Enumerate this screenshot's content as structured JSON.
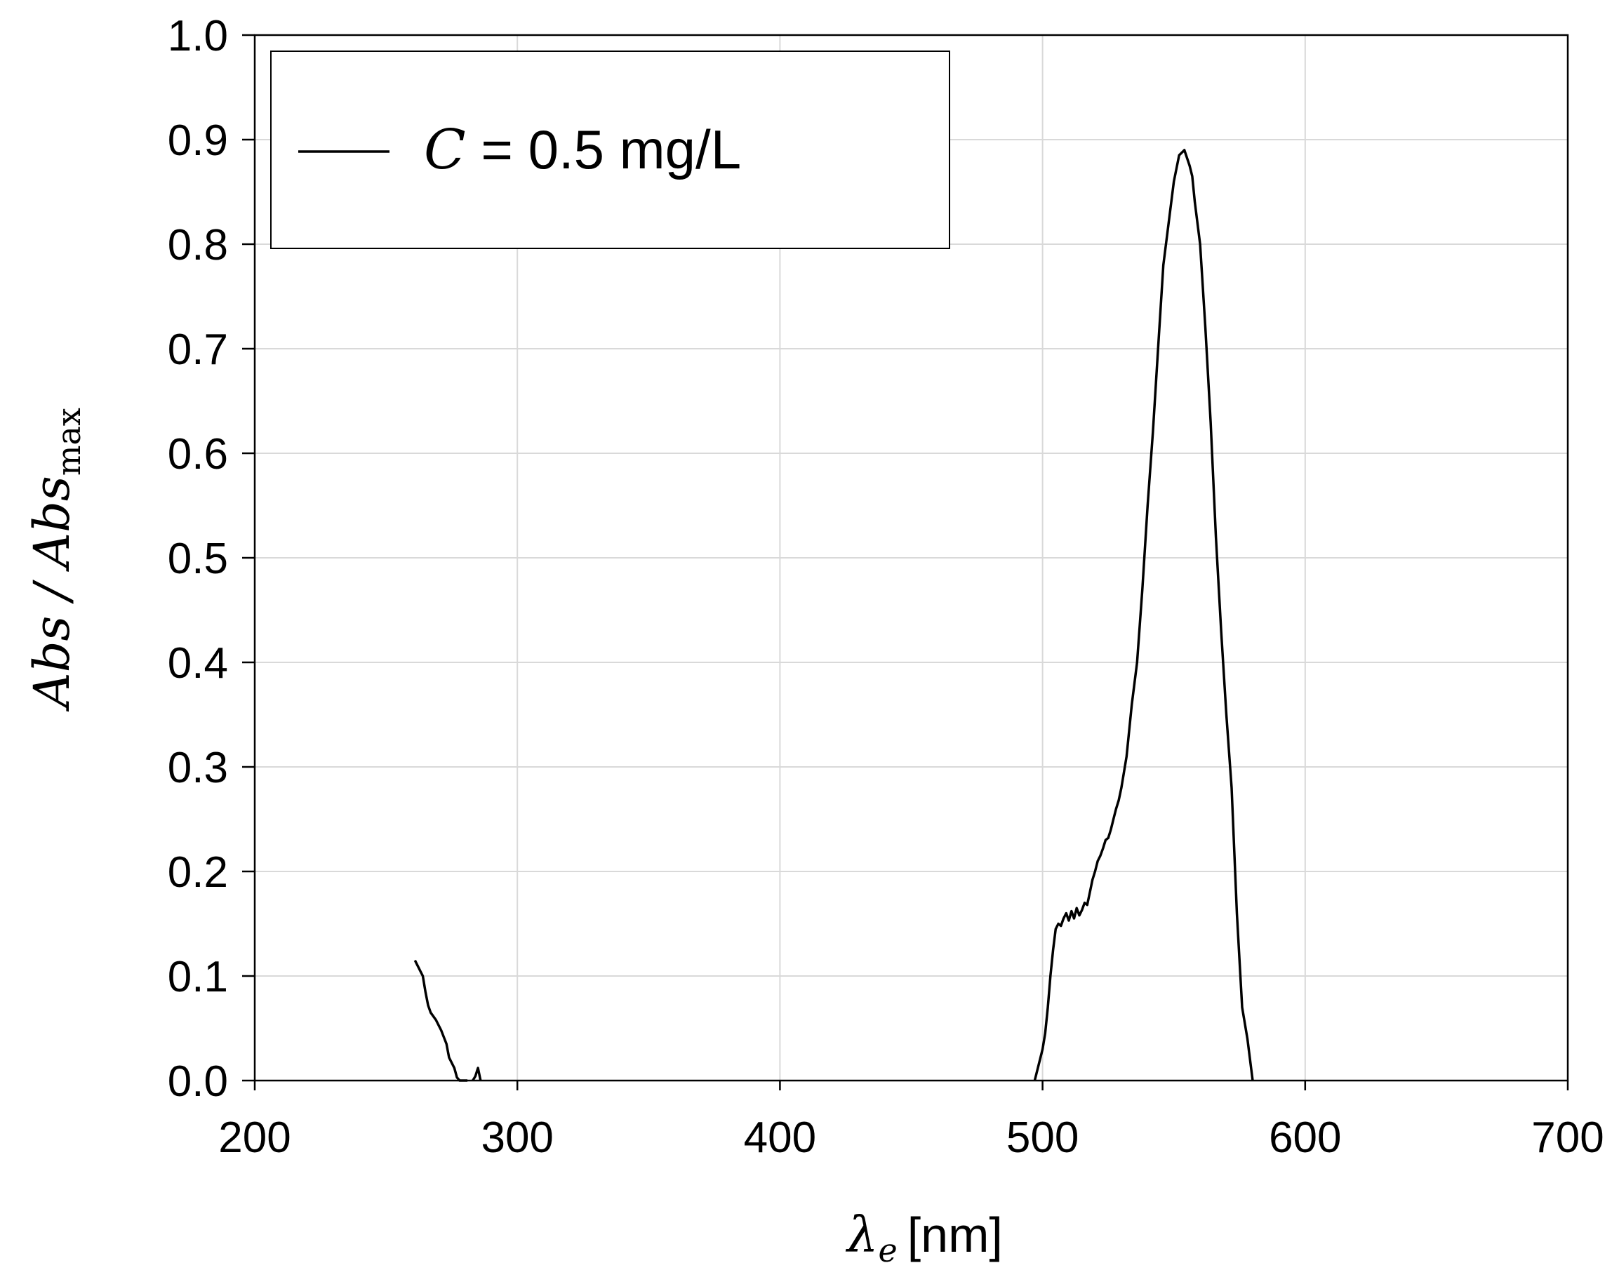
{
  "chart_data": {
    "type": "line",
    "title": "",
    "xlabel": {
      "symbol": "λ",
      "sub": "e",
      "unit": "[nm]"
    },
    "ylabel": {
      "num": "Abs",
      "sep": " / ",
      "den": "Abs",
      "sub": "max"
    },
    "xlim": [
      200,
      700
    ],
    "ylim": [
      0.0,
      1.0
    ],
    "xticks": [
      "200",
      "300",
      "400",
      "500",
      "600",
      "700"
    ],
    "yticks": [
      "0.0",
      "0.1",
      "0.2",
      "0.3",
      "0.4",
      "0.5",
      "0.6",
      "0.7",
      "0.8",
      "0.9",
      "1.0"
    ],
    "grid": true,
    "legend": {
      "position": "top-left",
      "entries": [
        {
          "symbol": "C",
          "text": " = 0.5 mg/L"
        }
      ]
    },
    "series": [
      {
        "name": "C = 0.5 mg/L",
        "color": "#000000",
        "segments": [
          [
            [
              261,
              0.115
            ],
            [
              263,
              0.105
            ],
            [
              264,
              0.1
            ],
            [
              265,
              0.085
            ],
            [
              266,
              0.072
            ],
            [
              267,
              0.065
            ],
            [
              269,
              0.058
            ],
            [
              271,
              0.048
            ],
            [
              273,
              0.035
            ],
            [
              274,
              0.022
            ],
            [
              276,
              0.012
            ],
            [
              277,
              0.003
            ],
            [
              278,
              0.0
            ],
            [
              280,
              0.0
            ],
            [
              281,
              0.0
            ]
          ],
          [
            [
              283,
              0.0
            ],
            [
              284,
              0.004
            ],
            [
              285,
              0.012
            ],
            [
              286,
              0.0
            ]
          ],
          [
            [
              497,
              0.0
            ],
            [
              499,
              0.02
            ],
            [
              500,
              0.03
            ],
            [
              501,
              0.045
            ],
            [
              502,
              0.07
            ],
            [
              503,
              0.1
            ],
            [
              504,
              0.125
            ],
            [
              505,
              0.145
            ],
            [
              506,
              0.15
            ],
            [
              507,
              0.148
            ],
            [
              508,
              0.155
            ],
            [
              509,
              0.16
            ],
            [
              510,
              0.153
            ],
            [
              511,
              0.162
            ],
            [
              512,
              0.155
            ],
            [
              513,
              0.165
            ],
            [
              514,
              0.158
            ],
            [
              515,
              0.163
            ],
            [
              516,
              0.17
            ],
            [
              517,
              0.168
            ],
            [
              518,
              0.18
            ],
            [
              519,
              0.192
            ],
            [
              520,
              0.2
            ],
            [
              521,
              0.21
            ],
            [
              522,
              0.215
            ],
            [
              523,
              0.222
            ],
            [
              524,
              0.23
            ],
            [
              525,
              0.232
            ],
            [
              526,
              0.24
            ],
            [
              527,
              0.25
            ],
            [
              528,
              0.26
            ],
            [
              529,
              0.268
            ],
            [
              530,
              0.28
            ],
            [
              532,
              0.31
            ],
            [
              534,
              0.36
            ],
            [
              536,
              0.4
            ],
            [
              538,
              0.47
            ],
            [
              540,
              0.55
            ],
            [
              542,
              0.62
            ],
            [
              544,
              0.7
            ],
            [
              546,
              0.78
            ],
            [
              548,
              0.82
            ],
            [
              550,
              0.86
            ],
            [
              552,
              0.885
            ],
            [
              554,
              0.89
            ],
            [
              556,
              0.875
            ],
            [
              557,
              0.865
            ],
            [
              558,
              0.84
            ],
            [
              560,
              0.8
            ],
            [
              562,
              0.72
            ],
            [
              564,
              0.63
            ],
            [
              566,
              0.52
            ],
            [
              568,
              0.43
            ],
            [
              570,
              0.35
            ],
            [
              572,
              0.28
            ],
            [
              574,
              0.16
            ],
            [
              576,
              0.07
            ],
            [
              578,
              0.04
            ],
            [
              580,
              0.0
            ]
          ]
        ]
      }
    ]
  }
}
